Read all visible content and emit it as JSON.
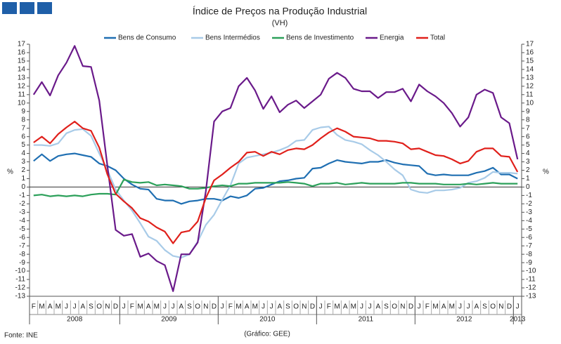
{
  "chart_data": {
    "type": "line",
    "title": "Índice de Preços na Produção Industrial",
    "subtitle": "(VH)",
    "ylabel": "%",
    "y2label": "%",
    "source": "Fonte: INE",
    "credit": "(Gráfico: GEE)",
    "categories": [
      "F",
      "M",
      "A",
      "M",
      "J",
      "J",
      "A",
      "S",
      "O",
      "N",
      "D",
      "J",
      "F",
      "M",
      "A",
      "M",
      "J",
      "J",
      "A",
      "S",
      "O",
      "N",
      "D",
      "J",
      "F",
      "M",
      "A",
      "M",
      "J",
      "J",
      "A",
      "S",
      "O",
      "N",
      "D",
      "J",
      "F",
      "M",
      "A",
      "M",
      "J",
      "J",
      "A",
      "S",
      "O",
      "N",
      "D",
      "J",
      "F",
      "M",
      "A",
      "M",
      "J",
      "J",
      "A",
      "S",
      "O",
      "N",
      "D",
      "J"
    ],
    "years": [
      "2008",
      "2009",
      "2010",
      "2011",
      "2012",
      "2013"
    ],
    "ylim": [
      -13,
      17
    ],
    "yticks": [
      17,
      16,
      15,
      14,
      13,
      12,
      11,
      10,
      9,
      8,
      7,
      6,
      5,
      4,
      3,
      2,
      1,
      0,
      -1,
      -2,
      -3,
      -4,
      -5,
      -6,
      -7,
      -8,
      -9,
      -10,
      -11,
      -12,
      -13
    ],
    "series": [
      {
        "name": "Bens de Consumo",
        "color": "#1f6fb2",
        "values": [
          3.1,
          3.9,
          3.1,
          3.7,
          3.9,
          4,
          3.8,
          3.6,
          2.8,
          2.5,
          2.0,
          1.0,
          0.3,
          -0.2,
          -0.3,
          -1.4,
          -1.6,
          -1.6,
          -2,
          -1.7,
          -1.6,
          -1.4,
          -1.4,
          -1.6,
          -1.1,
          -1.3,
          -1,
          -0.2,
          -0.1,
          0.3,
          0.7,
          0.8,
          1,
          1.1,
          2.2,
          2.3,
          2.8,
          3.2,
          3,
          2.9,
          2.8,
          3,
          3,
          3.2,
          2.9,
          2.7,
          2.6,
          2.5,
          1.6,
          1.4,
          1.5,
          1.4,
          1.4,
          1.4,
          1.7,
          1.9,
          2.3,
          1.5,
          1.5,
          1.0
        ]
      },
      {
        "name": "Bens Intermédios",
        "color": "#a8cbe8",
        "values": [
          5,
          5,
          4.9,
          5.2,
          6.4,
          6.8,
          6.9,
          6.1,
          4,
          2,
          -0.3,
          -1.6,
          -2.8,
          -4.3,
          -5.9,
          -6.4,
          -7.5,
          -8.2,
          -8.4,
          -8,
          -6.5,
          -4.5,
          -3.3,
          -1.5,
          0.2,
          2.8,
          3.5,
          3.7,
          3.9,
          4.1,
          4.4,
          4.8,
          5.5,
          5.6,
          6.8,
          7.1,
          7.2,
          6.2,
          5.6,
          5.4,
          5.1,
          4.4,
          3.8,
          3,
          2.1,
          1.4,
          -0.3,
          -0.6,
          -0.7,
          -0.4,
          -0.4,
          -0.3,
          -0.1,
          0.5,
          0.7,
          1.1,
          1.8,
          1.7,
          1.7,
          1.6
        ]
      },
      {
        "name": "Bens de Investimento",
        "color": "#2ca05a",
        "values": [
          -1,
          -0.9,
          -1.1,
          -1,
          -1.1,
          -1,
          -1.1,
          -0.9,
          -0.8,
          -0.8,
          -0.9,
          0.9,
          0.6,
          0.5,
          0.6,
          0.2,
          0.3,
          0.2,
          0.1,
          -0.2,
          -0.2,
          -0.1,
          0.1,
          0.2,
          0.1,
          0.4,
          0.4,
          0.5,
          0.5,
          0.5,
          0.5,
          0.6,
          0.5,
          0.4,
          0.1,
          0.4,
          0.4,
          0.5,
          0.3,
          0.4,
          0.5,
          0.4,
          0.4,
          0.4,
          0.4,
          0.5,
          0.5,
          0.4,
          0.4,
          0.4,
          0.3,
          0.3,
          0.3,
          0.4,
          0.3,
          0.4,
          0.5,
          0.4,
          0.4,
          0.4
        ]
      },
      {
        "name": "Energia",
        "color": "#6a1a8a",
        "values": [
          11,
          12.5,
          10.9,
          13.3,
          14.8,
          16.8,
          14.4,
          14.3,
          10.3,
          2.5,
          -5.1,
          -5.8,
          -5.6,
          -8.3,
          -7.9,
          -8.8,
          -9.3,
          -12.4,
          -8,
          -8,
          -6.6,
          -0.5,
          7.8,
          9,
          9.4,
          12,
          13,
          11.5,
          9.3,
          10.8,
          8.9,
          9.8,
          10.3,
          9.4,
          10.2,
          11,
          12.9,
          13.6,
          13,
          11.7,
          11.4,
          11.4,
          10.6,
          11.3,
          11.3,
          11.7,
          10.2,
          12.2,
          11.4,
          10.8,
          10.0,
          8.8,
          7.2,
          8.3,
          11,
          11.6,
          11.2,
          8.3,
          7.6,
          3.3
        ]
      },
      {
        "name": "Total",
        "color": "#e0201b",
        "values": [
          5.3,
          6,
          5.2,
          6.3,
          7.1,
          7.8,
          7,
          6.7,
          4.7,
          1.5,
          -0.8,
          -1.7,
          -2.5,
          -3.7,
          -4.1,
          -4.8,
          -5.3,
          -6.7,
          -5.4,
          -5.2,
          -4.1,
          -1.3,
          0.8,
          1.5,
          2.3,
          3,
          4.1,
          4.2,
          3.7,
          4.2,
          3.9,
          4.4,
          4.6,
          4.5,
          5,
          5.8,
          6.5,
          7,
          6.6,
          6,
          5.9,
          5.8,
          5.5,
          5.5,
          5.4,
          5.2,
          4.5,
          4.6,
          4.2,
          3.8,
          3.7,
          3.3,
          2.8,
          3.1,
          4.2,
          4.6,
          4.6,
          3.7,
          3.6,
          1.8
        ]
      }
    ]
  }
}
